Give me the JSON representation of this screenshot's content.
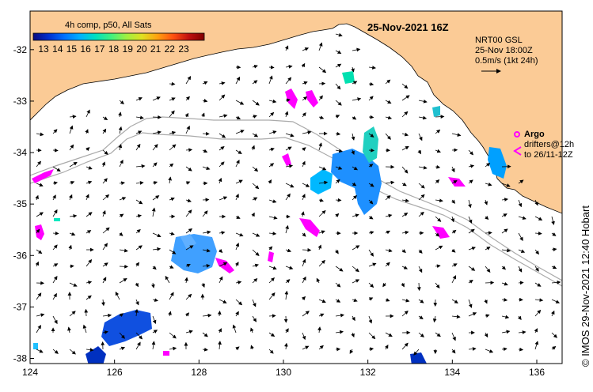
{
  "header": {
    "colorbar_title": "4h comp, p50, All Sats",
    "date_title": "25-Nov-2021 16Z"
  },
  "colorbar": {
    "ticks": [
      "13",
      "14",
      "15",
      "16",
      "17",
      "18",
      "19",
      "20",
      "21",
      "22",
      "23"
    ],
    "colors": [
      "#0a0a80",
      "#0030d0",
      "#0070ff",
      "#00b0ff",
      "#00e0c0",
      "#40f080",
      "#a0f040",
      "#e0e020",
      "#ffa010",
      "#ff5010",
      "#c01010",
      "#800000"
    ]
  },
  "legend": {
    "model": "NRT00 GSL",
    "time": "25-Nov 18:00Z",
    "scale": "0.5m/s (1kt 24h)",
    "argo_label": "Argo",
    "drifters_label": "drifters@12h",
    "drifters_to": "to 26/11-12Z"
  },
  "axes": {
    "x_ticks": [
      "124",
      "126",
      "128",
      "130",
      "132",
      "134",
      "136"
    ],
    "y_ticks": [
      "-32",
      "-33",
      "-34",
      "-35",
      "-36",
      "-37",
      "-38"
    ],
    "lon_range": [
      124,
      136.6
    ],
    "lat_range": [
      -38.1,
      -31.25
    ]
  },
  "credit": "© IMOS 29-Nov-2021 12:40 Hobart",
  "colors": {
    "land": "#fbcb96",
    "ocean": "#ffffff",
    "argo": "#ff00ff",
    "shelf": "#aaaaaa"
  }
}
